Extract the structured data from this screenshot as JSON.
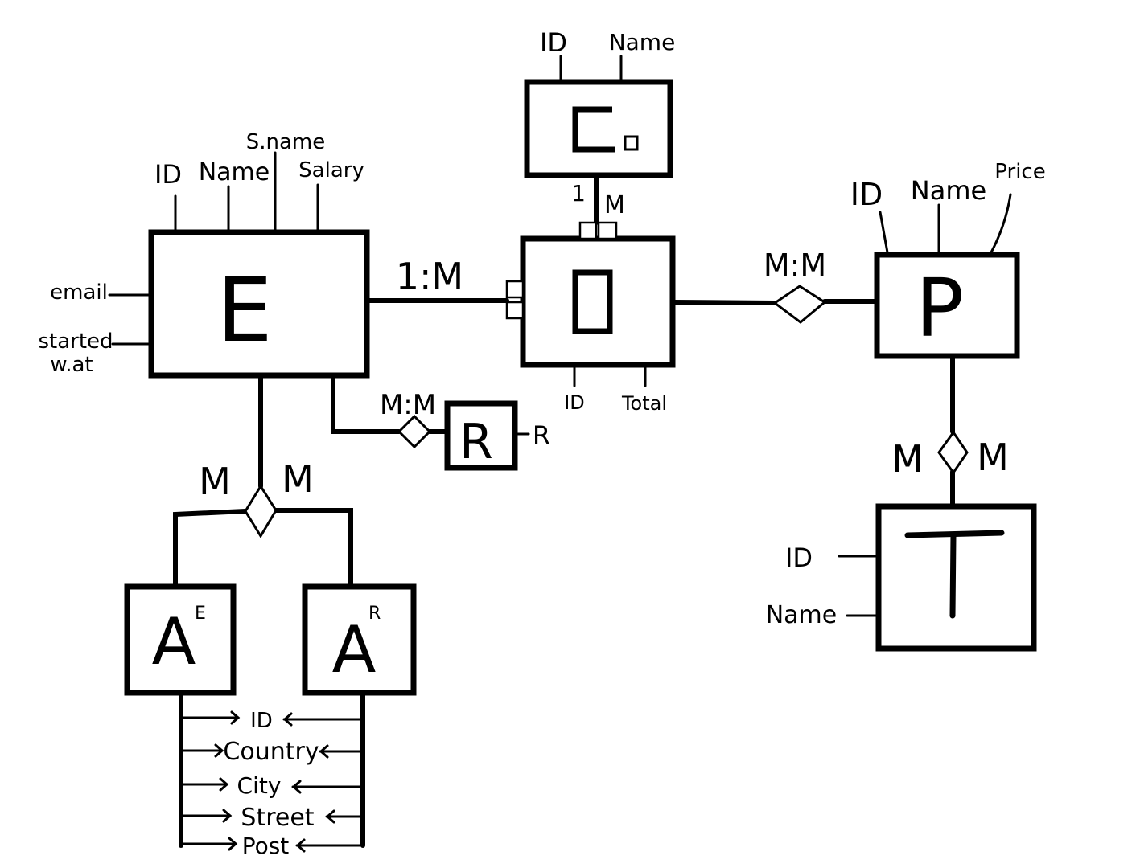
{
  "entities": {
    "e": "E",
    "o": "O",
    "c": "C",
    "p": "P",
    "t": "T",
    "r": "R",
    "ae": "A",
    "ae_sup": "E",
    "ar": "A",
    "ar_sup": "R"
  },
  "attributes": {
    "e": {
      "id": "ID",
      "name": "Name",
      "sname": "S.name",
      "salary": "Salary",
      "email": "email",
      "started_line1": "started",
      "started_line2": "w.at"
    },
    "c": {
      "id": "ID",
      "name": "Name"
    },
    "o": {
      "id": "ID",
      "total": "Total"
    },
    "p": {
      "id": "ID",
      "name": "Name",
      "price": "Price"
    },
    "t": {
      "id": "ID",
      "name": "Name"
    },
    "r": {
      "r": "R"
    },
    "address": [
      "ID",
      "Country",
      "City",
      "Street",
      "Post"
    ]
  },
  "relationships": {
    "e_o": "1:M",
    "c_o_left": "1",
    "c_o_right": "M",
    "o_p": "M:M",
    "e_r": "M:M",
    "e_a_left": "M",
    "e_a_right": "M",
    "p_t_left": "M",
    "p_t_right": "M"
  }
}
